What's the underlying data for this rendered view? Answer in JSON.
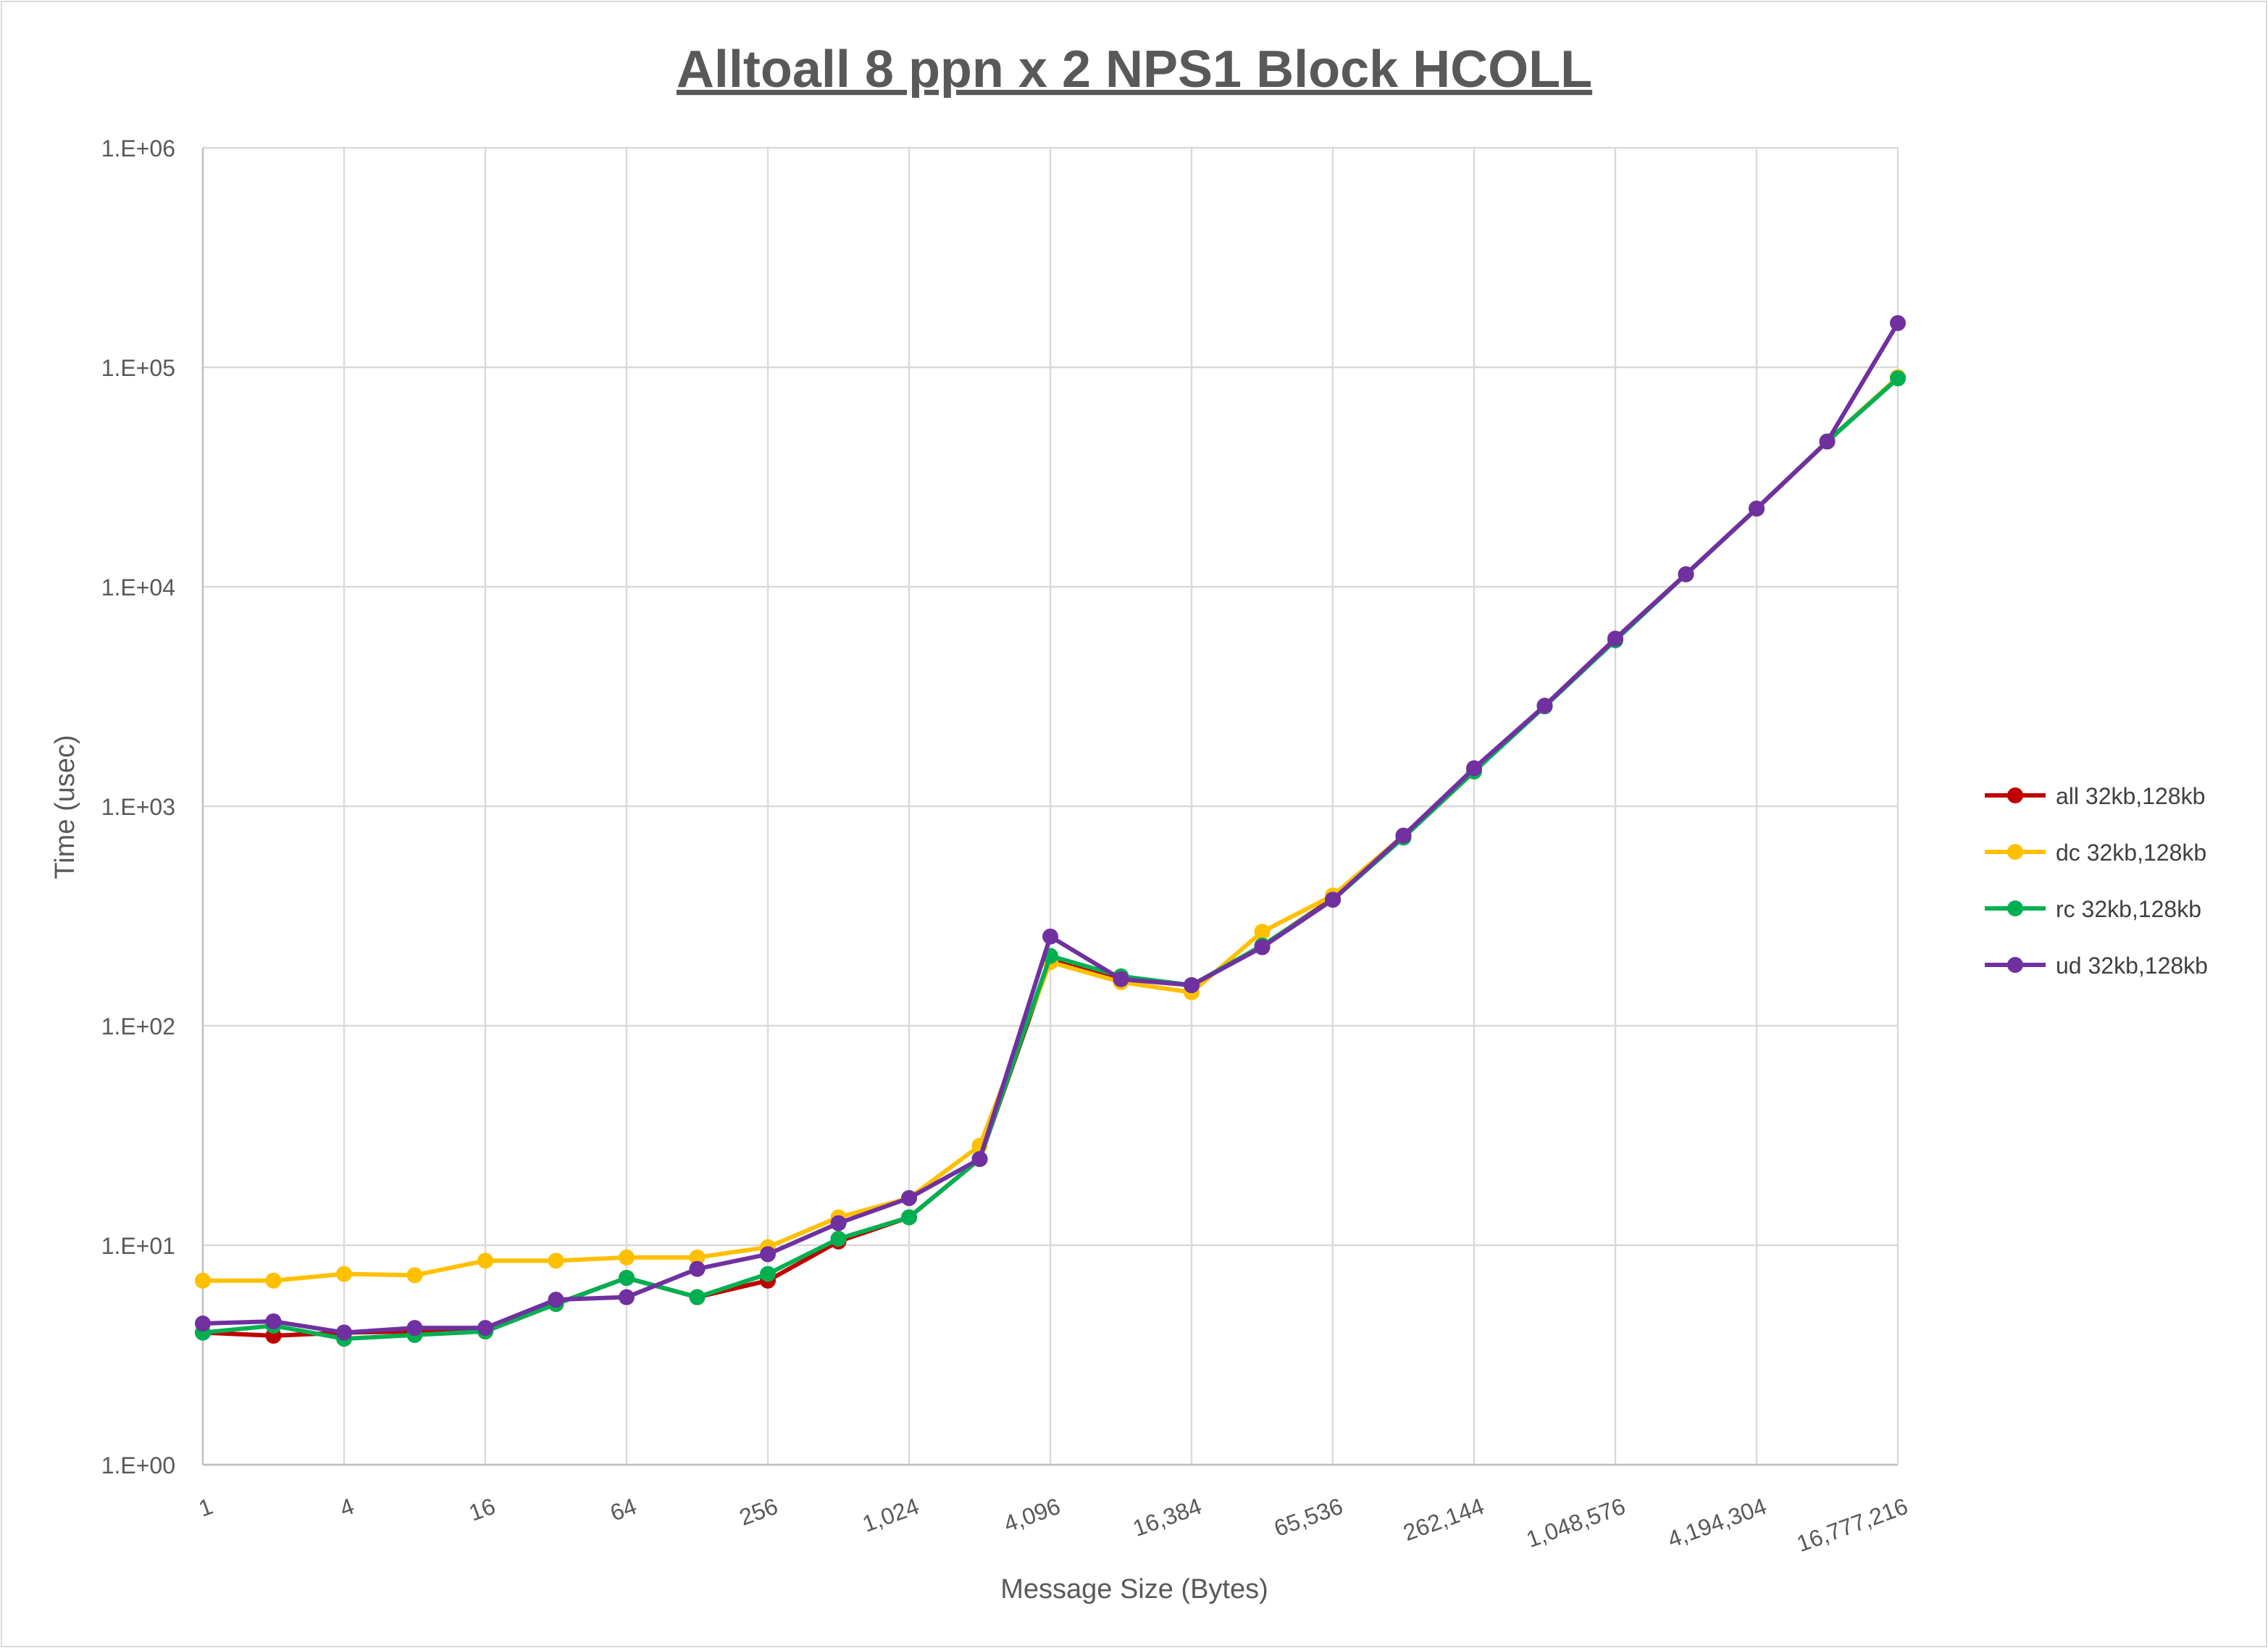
{
  "chart_data": {
    "type": "line",
    "title": "Alltoall 8 ppn x 2 NPS1 Block HCOLL",
    "xlabel": "Message Size (Bytes)",
    "ylabel": "Time (usec)",
    "x_scale": "log2",
    "y_scale": "log10",
    "ylim": [
      1,
      1000000
    ],
    "grid": true,
    "legend_position": "right",
    "x": [
      1,
      2,
      4,
      8,
      16,
      32,
      64,
      128,
      256,
      512,
      1024,
      2048,
      4096,
      8192,
      16384,
      32768,
      65536,
      131072,
      262144,
      524288,
      1048576,
      2097152,
      4194304,
      8388608,
      16777216
    ],
    "x_tick_labels": [
      "1",
      "4",
      "16",
      "64",
      "256",
      "1,024",
      "4,096",
      "16,384",
      "65,536",
      "262,144",
      "1,048,576",
      "4,194,304",
      "16,777,216"
    ],
    "y_tick_labels": [
      "1.E+00",
      "1.E+01",
      "1.E+02",
      "1.E+03",
      "1.E+04",
      "1.E+05",
      "1.E+06"
    ],
    "series": [
      {
        "name": "all 32kb,128kb",
        "color": "#C00000",
        "values": [
          4.0,
          3.87,
          4.0,
          4.05,
          4.05,
          5.4,
          7.1,
          5.8,
          6.9,
          10.4,
          13.4,
          24.7,
          201,
          166,
          153,
          231,
          380,
          735,
          1450,
          2870,
          5800,
          11400,
          22700,
          45900,
          90000
        ]
      },
      {
        "name": "dc 32kb,128kb",
        "color": "#FFC000",
        "values": [
          6.9,
          6.9,
          7.4,
          7.3,
          8.5,
          8.5,
          8.8,
          8.8,
          9.8,
          13.4,
          16.4,
          28.4,
          195,
          158,
          142,
          268,
          392,
          735,
          1470,
          2870,
          5800,
          11400,
          22700,
          45900,
          90000
        ]
      },
      {
        "name": "rc 32kb,128kb",
        "color": "#00B050",
        "values": [
          4.0,
          4.3,
          3.75,
          3.9,
          4.05,
          5.4,
          7.1,
          5.8,
          7.4,
          10.7,
          13.4,
          24.7,
          208,
          168,
          153,
          232,
          375,
          720,
          1440,
          2850,
          5700,
          11400,
          22700,
          45900,
          89000
        ]
      },
      {
        "name": "ud 32kb,128kb",
        "color": "#7030A0",
        "values": [
          4.4,
          4.5,
          4.0,
          4.2,
          4.2,
          5.65,
          5.8,
          7.8,
          9.1,
          12.6,
          16.4,
          24.7,
          255,
          163,
          153,
          228,
          375,
          735,
          1490,
          2870,
          5800,
          11400,
          22700,
          45900,
          159000
        ]
      }
    ]
  }
}
